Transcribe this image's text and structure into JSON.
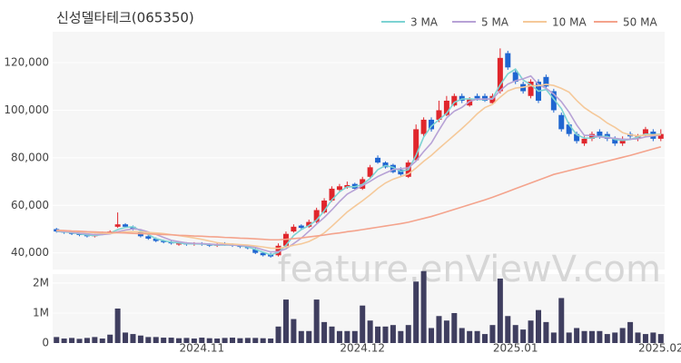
{
  "chart_data": [
    {
      "type": "candlestick",
      "title": "신성델타테크(065350)",
      "watermark": "feature.enViewV.com",
      "up_color": "#e0262c",
      "down_color": "#1f66d1",
      "legend": "upper right",
      "xlim": [
        -0.5,
        79.5
      ],
      "ylim": [
        33000,
        133000
      ],
      "yticks": [
        {
          "value": 40000,
          "label": "40,000"
        },
        {
          "value": 60000,
          "label": "60,000"
        },
        {
          "value": 80000,
          "label": "80,000"
        },
        {
          "value": 100000,
          "label": "100,000"
        },
        {
          "value": 120000,
          "label": "120,000"
        }
      ],
      "open": [
        50000,
        49000,
        48500,
        48000,
        47500,
        47000,
        48000,
        48500,
        51000,
        52000,
        51000,
        49000,
        47000,
        46000,
        45000,
        44500,
        43500,
        44000,
        43500,
        44000,
        43500,
        43000,
        44000,
        43500,
        43000,
        42500,
        41500,
        40000,
        39500,
        39000,
        43000,
        49000,
        51500,
        51000,
        53000,
        57000,
        62000,
        66500,
        67500,
        69000,
        67000,
        72000,
        80000,
        78000,
        77000,
        75000,
        72000,
        79000,
        90000,
        96000,
        96000,
        98000,
        102000,
        106000,
        102000,
        106000,
        106000,
        103000,
        108000,
        124000,
        116000,
        111000,
        106000,
        112000,
        114000,
        108000,
        98000,
        94000,
        90000,
        86000,
        88000,
        91000,
        90000,
        88000,
        86000,
        90000,
        88000,
        90000,
        91000,
        88000
      ],
      "high": [
        50500,
        49500,
        49000,
        48500,
        48000,
        48000,
        49000,
        49500,
        57000,
        52500,
        51500,
        49500,
        47500,
        46500,
        45500,
        45000,
        44500,
        44500,
        44500,
        44500,
        44000,
        44000,
        44500,
        44000,
        43500,
        43000,
        42000,
        40500,
        40000,
        44000,
        49000,
        52000,
        52000,
        54000,
        59000,
        63000,
        68000,
        69000,
        70000,
        69500,
        72000,
        77000,
        81000,
        78500,
        77500,
        76000,
        79000,
        94000,
        97000,
        97000,
        104000,
        106000,
        107000,
        107000,
        105500,
        107000,
        107000,
        107000,
        126000,
        125000,
        117000,
        112000,
        113000,
        113000,
        115000,
        109000,
        99000,
        95000,
        91000,
        89000,
        91000,
        92000,
        91000,
        89000,
        89000,
        91000,
        90000,
        93000,
        92000,
        92000
      ],
      "low": [
        48500,
        48000,
        47500,
        47000,
        46500,
        46500,
        47500,
        48000,
        50500,
        50500,
        49500,
        46500,
        45500,
        44500,
        44000,
        43500,
        43000,
        43000,
        43000,
        43000,
        42500,
        42500,
        43000,
        42500,
        42000,
        41500,
        39500,
        38500,
        38000,
        38500,
        42500,
        48500,
        50000,
        50500,
        52500,
        56500,
        61500,
        66000,
        67000,
        66500,
        66500,
        71500,
        77500,
        75500,
        73500,
        72500,
        71500,
        79000,
        89000,
        91000,
        95000,
        97500,
        101500,
        103000,
        101500,
        104000,
        103500,
        102500,
        107000,
        117000,
        111000,
        107000,
        105000,
        103000,
        109000,
        99000,
        91000,
        89000,
        86000,
        85000,
        87000,
        88000,
        87000,
        85000,
        85000,
        88000,
        87000,
        89000,
        87000,
        87000
      ],
      "close": [
        49000,
        48500,
        48000,
        47500,
        47000,
        47500,
        48500,
        49000,
        52000,
        51000,
        50000,
        47000,
        46000,
        45000,
        44500,
        44000,
        44000,
        43500,
        44000,
        43500,
        43000,
        43500,
        43500,
        43000,
        42500,
        42000,
        40000,
        39000,
        38500,
        43000,
        48000,
        51000,
        50500,
        53000,
        58000,
        62000,
        67000,
        68000,
        68500,
        67000,
        71000,
        76000,
        78000,
        76000,
        74000,
        73000,
        78000,
        92000,
        96000,
        92000,
        100000,
        104000,
        106000,
        104000,
        104500,
        105000,
        104000,
        106000,
        122000,
        118000,
        112000,
        108000,
        112000,
        104000,
        110000,
        100000,
        92000,
        90000,
        87000,
        88000,
        90000,
        89000,
        88000,
        86000,
        88000,
        89000,
        89000,
        92000,
        88000,
        90000
      ],
      "series": [
        {
          "name": "3 MA",
          "color": "#7dd3d3",
          "values": [
            49000,
            48800,
            48500,
            48000,
            47500,
            47300,
            47700,
            48300,
            49800,
            50700,
            51000,
            49300,
            47700,
            46000,
            45200,
            44500,
            44200,
            43800,
            43800,
            43700,
            43500,
            43300,
            43300,
            43300,
            43000,
            42500,
            41500,
            40300,
            39200,
            40200,
            43200,
            47300,
            49800,
            51500,
            53800,
            57700,
            62300,
            65700,
            67800,
            67800,
            68800,
            71300,
            75000,
            76700,
            76000,
            74300,
            75000,
            81000,
            88700,
            93300,
            96000,
            98700,
            103300,
            104700,
            104800,
            104500,
            104500,
            105000,
            110700,
            115300,
            117300,
            112700,
            110700,
            108000,
            108700,
            104700,
            100700,
            94000,
            89700,
            88300,
            88300,
            89000,
            89000,
            87700,
            87300,
            87700,
            88700,
            90000,
            89700,
            90000
          ]
        },
        {
          "name": "5 MA",
          "color": "#b7a2d6",
          "values": [
            49200,
            49000,
            48700,
            48300,
            48000,
            47700,
            47700,
            48000,
            48900,
            49600,
            50100,
            49800,
            48800,
            47800,
            46500,
            45300,
            44700,
            44200,
            44000,
            43900,
            43700,
            43500,
            43500,
            43300,
            43100,
            42900,
            42300,
            41300,
            40400,
            40500,
            41700,
            43900,
            46200,
            49100,
            52100,
            54900,
            58100,
            61600,
            64700,
            66500,
            68300,
            70100,
            72100,
            73600,
            75000,
            75400,
            75800,
            78600,
            82600,
            86200,
            91600,
            96800,
            99600,
            101200,
            103700,
            104700,
            104700,
            104700,
            108300,
            111000,
            112400,
            113200,
            114400,
            110800,
            109200,
            106800,
            103600,
            99200,
            93800,
            89400,
            89400,
            88800,
            88400,
            88200,
            87800,
            87800,
            88000,
            88800,
            89200,
            89600
          ]
        },
        {
          "name": "10 MA",
          "color": "#f5c99a",
          "values": [
            49500,
            49300,
            49100,
            48900,
            48700,
            48500,
            48300,
            48200,
            48500,
            48800,
            48900,
            48800,
            48600,
            48400,
            48100,
            47700,
            47300,
            46800,
            46300,
            45700,
            45000,
            44300,
            43900,
            43700,
            43500,
            43300,
            42900,
            42500,
            42000,
            41900,
            42400,
            43200,
            43800,
            44800,
            46400,
            48400,
            51200,
            54200,
            57200,
            59600,
            61900,
            64400,
            67100,
            69400,
            71000,
            72100,
            73200,
            75700,
            78500,
            81000,
            83900,
            86700,
            89500,
            92300,
            95300,
            98500,
            101100,
            102500,
            105500,
            108100,
            109300,
            109700,
            110300,
            110300,
            110900,
            110400,
            109200,
            107600,
            104100,
            101100,
            98900,
            97000,
            94600,
            92800,
            90600,
            89600,
            89300,
            89500,
            89600,
            89800
          ]
        },
        {
          "name": "50 MA",
          "color": "#f4a38c",
          "values": [
            49500,
            49400,
            49200,
            49100,
            48900,
            48800,
            48700,
            48600,
            48500,
            48400,
            48200,
            48100,
            48000,
            47800,
            47700,
            47600,
            47400,
            47300,
            47100,
            47000,
            46800,
            46700,
            46500,
            46400,
            46200,
            46100,
            45900,
            45700,
            45500,
            45500,
            45700,
            46000,
            46300,
            46700,
            47100,
            47500,
            48000,
            48400,
            48900,
            49300,
            49800,
            50300,
            50800,
            51300,
            51800,
            52300,
            52900,
            53700,
            54500,
            55300,
            56300,
            57300,
            58300,
            59300,
            60300,
            61300,
            62300,
            63400,
            64600,
            65800,
            67000,
            68200,
            69400,
            70600,
            71800,
            73000,
            73800,
            74600,
            75400,
            76200,
            77000,
            77800,
            78600,
            79400,
            80200,
            81000,
            81900,
            82800,
            83700,
            84600
          ]
        }
      ]
    },
    {
      "type": "bar",
      "color": "#3f3e5f",
      "xlim": [
        -0.5,
        79.5
      ],
      "ylim": [
        0,
        2300000
      ],
      "yticks": [
        0,
        {
          "value": 1000000,
          "label": "1M"
        },
        {
          "value": 2000000,
          "label": "2M"
        }
      ],
      "xticks": [
        {
          "value": 19,
          "label": "2024.11"
        },
        {
          "value": 40,
          "label": "2024.12"
        },
        {
          "value": 60,
          "label": "2025.01"
        },
        {
          "value": 79,
          "label": "2025.02"
        }
      ],
      "values": [
        200000,
        150000,
        170000,
        140000,
        170000,
        200000,
        150000,
        280000,
        1150000,
        350000,
        300000,
        250000,
        200000,
        200000,
        180000,
        180000,
        160000,
        170000,
        150000,
        180000,
        160000,
        150000,
        170000,
        180000,
        160000,
        170000,
        170000,
        160000,
        150000,
        550000,
        1450000,
        800000,
        400000,
        400000,
        1450000,
        700000,
        550000,
        400000,
        400000,
        400000,
        1250000,
        750000,
        550000,
        550000,
        600000,
        400000,
        600000,
        2050000,
        2400000,
        500000,
        900000,
        750000,
        1000000,
        500000,
        400000,
        400000,
        300000,
        600000,
        2150000,
        900000,
        600000,
        450000,
        750000,
        1100000,
        700000,
        350000,
        1500000,
        350000,
        500000,
        400000,
        400000,
        400000,
        300000,
        350000,
        500000,
        700000,
        350000,
        300000,
        350000,
        300000
      ]
    }
  ]
}
